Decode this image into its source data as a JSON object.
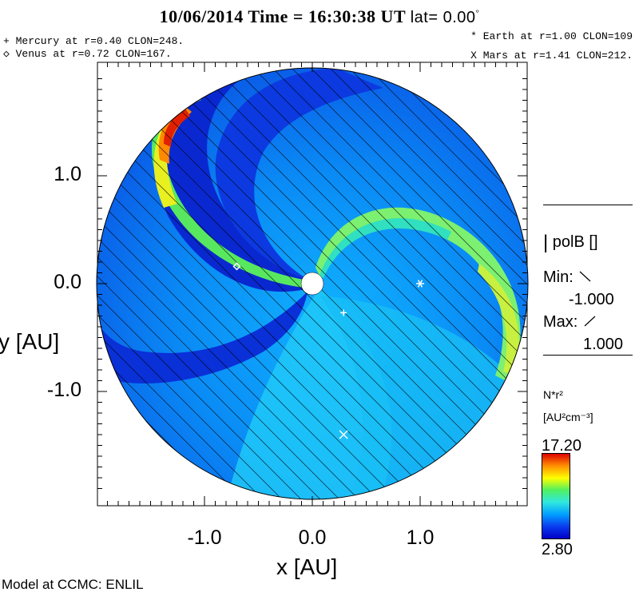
{
  "header": {
    "title": "10/06/2014 Time = 16:30:38 UT",
    "lat_label": "lat= 0.00",
    "lat_degree_mark": "°"
  },
  "planet_legend": {
    "mercury": "+ Mercury at r=0.40 CLON=248.",
    "venus": "◇ Venus at r=0.72 CLON=167.",
    "earth": "* Earth at  r=1.00 CLON=109",
    "mars": "X Mars at r=1.41 CLON=212."
  },
  "right_panel": {
    "variable": "polB []",
    "min_label": "Min:",
    "min_value": "-1.000",
    "max_label": "Max:",
    "max_value": "1.000",
    "colorbar_quantity": "N*r²",
    "colorbar_units": "[AU²cm⁻³]",
    "colorbar_max": "17.20",
    "colorbar_min": "2.80"
  },
  "footer": {
    "credit": "Model at CCMC: ENLIL"
  },
  "chart_data": {
    "type": "heatmap",
    "xlabel": "x [AU]",
    "ylabel": "y [AU]",
    "xlim": [
      -2.0,
      2.0
    ],
    "ylim": [
      -2.0,
      2.0
    ],
    "x_ticks": [
      "-1.0",
      "0.0",
      "1.0"
    ],
    "y_ticks": [
      "1.0",
      "0.0",
      "-1.0"
    ],
    "x_tick_values": [
      -1.0,
      0.0,
      1.0
    ],
    "y_tick_values": [
      1.0,
      0.0,
      -1.0
    ],
    "domain_radius_au": 2.0,
    "quantity": "N*r²",
    "units": "AU²cm⁻³",
    "colorbar_range": [
      2.8,
      17.2
    ],
    "colormap": [
      "#0000c8",
      "#0a3cf0",
      "#00a0ff",
      "#30e8e0",
      "#50f060",
      "#ffff00",
      "#ff9000",
      "#e00000"
    ],
    "planets": [
      {
        "name": "Mercury",
        "marker": "+",
        "x": 0.29,
        "y": -0.27
      },
      {
        "name": "Venus",
        "marker": "◇",
        "x": -0.7,
        "y": 0.16
      },
      {
        "name": "Earth",
        "marker": "*",
        "x": 1.0,
        "y": 0.0
      },
      {
        "name": "Mars",
        "marker": "X",
        "x": 0.29,
        "y": -1.4
      }
    ]
  }
}
